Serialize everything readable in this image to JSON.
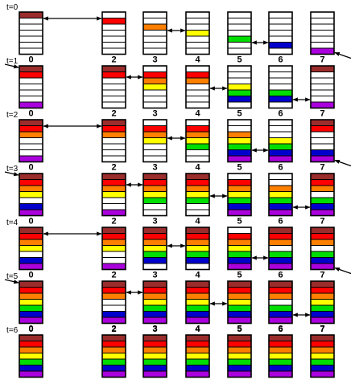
{
  "palette": {
    "R": "#9b2c2c",
    "r": "#ff0000",
    "o": "#ff7f00",
    "y": "#ffff00",
    "g": "#00dd00",
    "b": "#0000cc",
    "v": "#aa00dd",
    "w": "#ffffff"
  },
  "column_labels": [
    "0",
    "2",
    "3",
    "4",
    "5",
    "6",
    "7"
  ],
  "time_labels": [
    "t=0",
    "t=1",
    "t=2",
    "t=3",
    "t=4",
    "t=5",
    "t=6"
  ],
  "steps": [
    {
      "stacks": [
        "Rwwwwww",
        "wrwwwww",
        "wwowwww",
        "wwwywww",
        "wwwwgww",
        "wwwwwbw",
        "wwwwwwv"
      ],
      "exchanges": [
        [
          0,
          1
        ],
        [
          2,
          3
        ],
        [
          4,
          5
        ]
      ],
      "incoming_arrow": false,
      "outgoing_arrow": true
    },
    {
      "stacks": [
        "Rrwwwwv",
        "Rrwwwww",
        "wroywww",
        "wrowwww",
        "wwwygbw",
        "wwwwgbw",
        "Rwwwwwv"
      ],
      "exchanges": [
        [
          1,
          2
        ],
        [
          3,
          4
        ],
        [
          5,
          6
        ]
      ],
      "incoming_arrow": true,
      "outgoing_arrow": false
    },
    {
      "stacks": [
        "Rrowwwv",
        "Rrowwww",
        "wroywww",
        "wroygww",
        "wwoygbv",
        "wwwygbv",
        "Rrwwwbv"
      ],
      "exchanges": [
        [
          0,
          1
        ],
        [
          2,
          3
        ],
        [
          4,
          5
        ]
      ],
      "incoming_arrow": false,
      "outgoing_arrow": true
    },
    {
      "stacks": [
        "Rroywbv",
        "Rroywwv",
        "Rroygww",
        "Rroygww",
        "wroygbv",
        "wwoygbv",
        "Rrowgbv"
      ],
      "exchanges": [
        [
          1,
          2
        ],
        [
          3,
          4
        ],
        [
          5,
          6
        ]
      ],
      "incoming_arrow": true,
      "outgoing_arrow": false
    },
    {
      "stacks": [
        "Rroywbv",
        "Rroywwv",
        "Rroygbw",
        "Rroygbw",
        "wroygbv",
        "Rrowgbv",
        "Rrowgbv"
      ],
      "exchanges": [
        [
          0,
          1
        ],
        [
          2,
          3
        ],
        [
          4,
          5
        ]
      ],
      "incoming_arrow": false,
      "outgoing_arrow": true
    },
    {
      "stacks": [
        "Rroygbv",
        "Rrowwbv",
        "Rroygbv",
        "Rroygbv",
        "Rroygbv",
        "Rrowgbv",
        "Rroygbv"
      ],
      "exchanges": [
        [
          1,
          2
        ],
        [
          3,
          4
        ],
        [
          5,
          6
        ]
      ],
      "incoming_arrow": true,
      "outgoing_arrow": false
    },
    {
      "stacks": [
        "Rroygbv",
        "Rroygbv",
        "Rroygbv",
        "Rroygbv",
        "Rroygbv",
        "Rroygbv",
        "Rroygbv"
      ],
      "exchanges": [],
      "incoming_arrow": false,
      "outgoing_arrow": false
    }
  ]
}
